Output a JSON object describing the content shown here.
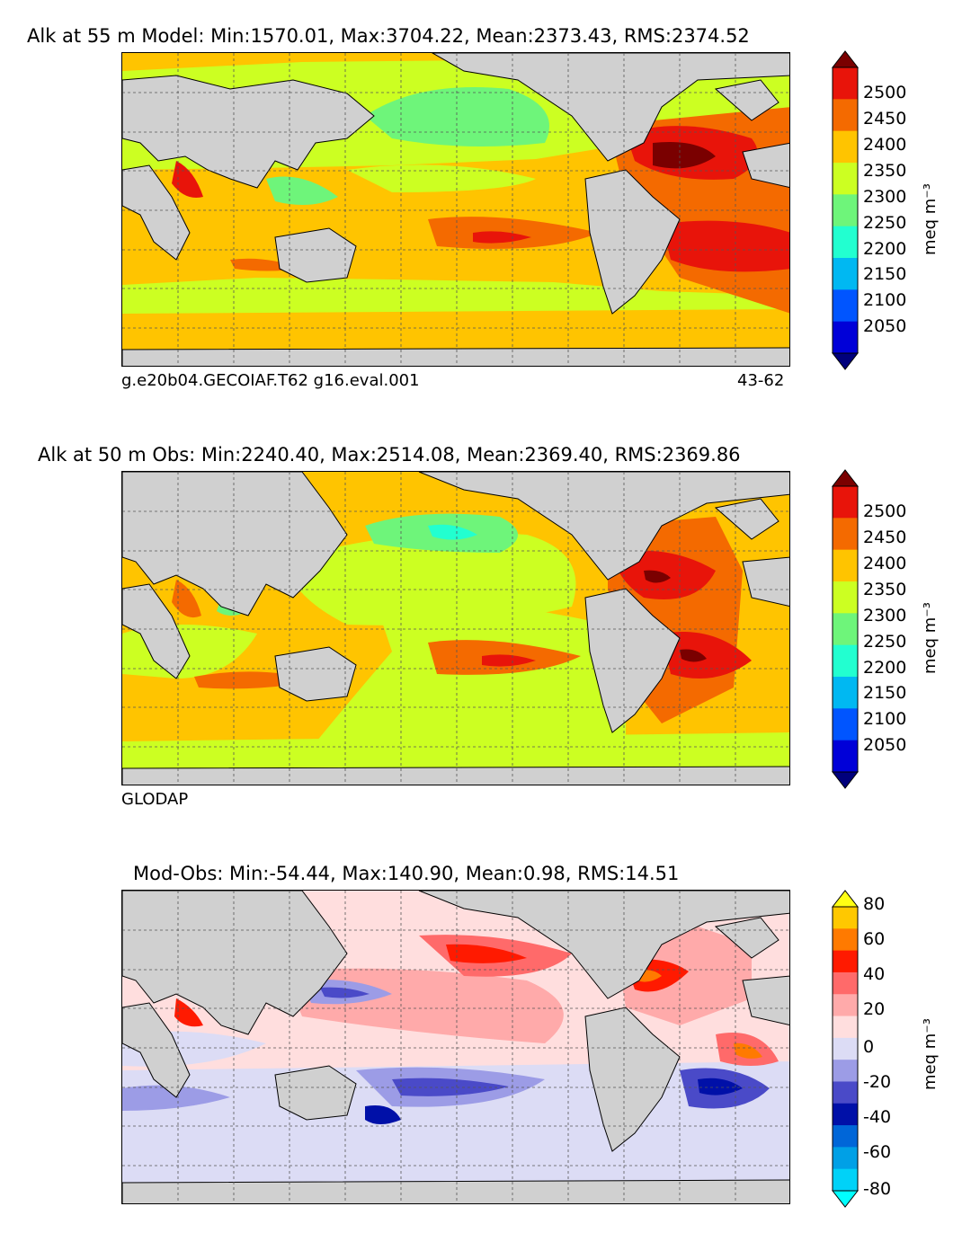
{
  "panels": [
    {
      "title": "Alk at 55 m Model: Min:1570.01, Max:3704.22, Mean:2373.43, RMS:2374.52",
      "footer_left": "g.e20b04.GECOIAF.T62 g16.eval.001",
      "footer_right": "43-62",
      "colorbar": {
        "units": "meq m⁻³",
        "ticks": [
          "2500",
          "2450",
          "2400",
          "2350",
          "2300",
          "2250",
          "2200",
          "2150",
          "2100",
          "2050"
        ],
        "colors": [
          "#7a0000",
          "#e8140a",
          "#f46a00",
          "#ffc400",
          "#ccff22",
          "#6ef57a",
          "#22ffd0",
          "#00b8f2",
          "#0055ff",
          "#0000d8",
          "#00007c"
        ]
      }
    },
    {
      "title": "Alk at 50 m Obs: Min:2240.40, Max:2514.08, Mean:2369.40, RMS:2369.86",
      "footer_left": "GLODAP",
      "footer_right": "",
      "colorbar": {
        "units": "meq m⁻³",
        "ticks": [
          "2500",
          "2450",
          "2400",
          "2350",
          "2300",
          "2250",
          "2200",
          "2150",
          "2100",
          "2050"
        ],
        "colors": [
          "#7a0000",
          "#e8140a",
          "#f46a00",
          "#ffc400",
          "#ccff22",
          "#6ef57a",
          "#22ffd0",
          "#00b8f2",
          "#0055ff",
          "#0000d8",
          "#00007c"
        ]
      }
    },
    {
      "title": "Mod-Obs: Min:-54.44, Max:140.90, Mean:0.98, RMS:14.51",
      "footer_left": "",
      "footer_right": "",
      "colorbar": {
        "units": "meq m⁻³",
        "ticks": [
          "80",
          "60",
          "40",
          "20",
          "0",
          "-20",
          "-40",
          "-60",
          "-80"
        ],
        "colors": [
          "#ffff14",
          "#ffc800",
          "#ff7a00",
          "#ff1a00",
          "#ff6a6a",
          "#ffaaaa",
          "#ffdede",
          "#dcdcf5",
          "#9c9ce6",
          "#4a4ac8",
          "#0010a8",
          "#0066d8",
          "#00a0e6",
          "#00d2f8",
          "#00ffff"
        ]
      }
    }
  ],
  "chart_data": [
    {
      "type": "heatmap",
      "title": "Alk at 55 m Model: Min:1570.01, Max:3704.22, Mean:2373.43, RMS:2374.52",
      "variable": "Alk",
      "depth_m": 55,
      "stats": {
        "min": 1570.01,
        "max": 3704.22,
        "mean": 2373.43,
        "rms": 2374.52
      },
      "colorbar_levels": [
        2050,
        2100,
        2150,
        2200,
        2250,
        2300,
        2350,
        2400,
        2450,
        2500
      ],
      "colorbar_units": "meq m⁻³",
      "extend": "both",
      "grid": true
    },
    {
      "type": "heatmap",
      "title": "Alk at 50 m Obs: Min:2240.40, Max:2514.08, Mean:2369.40, RMS:2369.86",
      "variable": "Alk",
      "depth_m": 50,
      "stats": {
        "min": 2240.4,
        "max": 2514.08,
        "mean": 2369.4,
        "rms": 2369.86
      },
      "colorbar_levels": [
        2050,
        2100,
        2150,
        2200,
        2250,
        2300,
        2350,
        2400,
        2450,
        2500
      ],
      "colorbar_units": "meq m⁻³",
      "extend": "both",
      "grid": true
    },
    {
      "type": "heatmap",
      "title": "Mod-Obs: Min:-54.44, Max:140.90, Mean:0.98, RMS:14.51",
      "stats": {
        "min": -54.44,
        "max": 140.9,
        "mean": 0.98,
        "rms": 14.51
      },
      "colorbar_levels": [
        -80,
        -70,
        -60,
        -50,
        -40,
        -30,
        -20,
        -10,
        0,
        10,
        20,
        30,
        40,
        50,
        60,
        70,
        80
      ],
      "colorbar_tick_labels": [
        -80,
        -60,
        -40,
        -20,
        0,
        20,
        40,
        60,
        80
      ],
      "colorbar_units": "meq m⁻³",
      "extend": "both",
      "grid": true
    }
  ]
}
